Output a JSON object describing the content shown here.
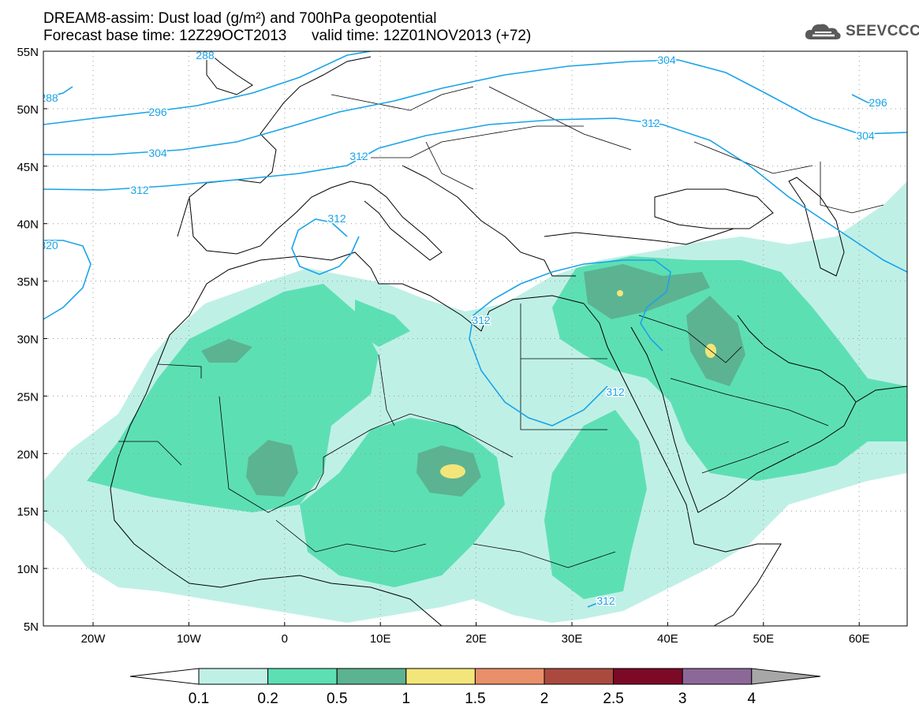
{
  "header": {
    "title_line1": "DREAM8-assim: Dust load (g/m²) and 700hPa geopotential",
    "title_line2": "Forecast base time: 12Z29OCT2013      valid time: 12Z01NOV2013 (+72)"
  },
  "logo": {
    "text": "SEEVCCC",
    "icon": "cloud-icon"
  },
  "map": {
    "lat_labels": [
      "55N",
      "50N",
      "45N",
      "40N",
      "35N",
      "30N",
      "25N",
      "20N",
      "15N",
      "10N",
      "5N"
    ],
    "lon_labels": [
      "20W",
      "10W",
      "0",
      "10E",
      "20E",
      "30E",
      "40E",
      "50E",
      "60E"
    ],
    "contour_labels": [
      "288",
      "288",
      "296",
      "296",
      "304",
      "304",
      "304",
      "312",
      "312",
      "312",
      "312",
      "312",
      "312",
      "312",
      "320"
    ],
    "colors": {
      "land": "#ffffff",
      "coast": "#000000",
      "contour": "#1aa3e8",
      "grid": "#999999"
    }
  },
  "legend": {
    "ticks": [
      "0.1",
      "0.2",
      "0.5",
      "1",
      "1.5",
      "2",
      "2.5",
      "3",
      "4"
    ],
    "colors": [
      "#ffffff",
      "#bff0e6",
      "#5ddfb4",
      "#5cb391",
      "#f2e67a",
      "#e98f6a",
      "#aa4a3f",
      "#7c0a26",
      "#8c6899",
      "#a7a7a7"
    ]
  }
}
